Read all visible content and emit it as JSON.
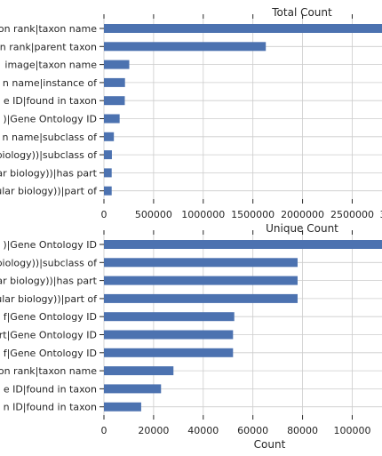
{
  "chart_data": [
    {
      "type": "bar",
      "orientation": "horizontal",
      "title": "Total Count",
      "xlabel": "",
      "categories": [
        "on rank|taxon name",
        "n rank|parent taxon",
        " image|taxon name",
        "n name|instance of",
        "e ID|found in taxon",
        ")|Gene Ontology ID",
        "n name|subclass of",
        "biology))|subclass of",
        "ar biology))|has part",
        "ular biology))|part of"
      ],
      "values": [
        2850000,
        1630000,
        255000,
        212000,
        210000,
        158000,
        100000,
        80000,
        78000,
        78000
      ],
      "xlim": [
        0,
        2800000
      ],
      "xticks": [
        0,
        500000,
        1000000,
        1500000,
        2000000,
        2500000
      ],
      "xtick_labels": [
        "0",
        "500000",
        "1000000",
        "1500000",
        "2000000",
        "2500000"
      ],
      "clipped_tick_label": "3",
      "bar_color": "#4c72b0",
      "grid": true
    },
    {
      "type": "bar",
      "orientation": "horizontal",
      "title": "Unique Count",
      "xlabel": "Count",
      "categories": [
        ")|Gene Ontology ID",
        "biology))|subclass of",
        "ar biology))|has part",
        "ular biology))|part of",
        "f|Gene Ontology ID",
        "rt|Gene Ontology ID",
        "f|Gene Ontology ID",
        "on rank|taxon name",
        "e ID|found in taxon",
        "n ID|found in taxon"
      ],
      "values": [
        115000,
        78000,
        78000,
        78000,
        52500,
        52000,
        52000,
        28000,
        23000,
        15000
      ],
      "xlim": [
        0,
        112000
      ],
      "xticks": [
        0,
        20000,
        40000,
        60000,
        80000,
        100000
      ],
      "xtick_labels": [
        "0",
        "20000",
        "40000",
        "60000",
        "80000",
        "100000"
      ],
      "bar_color": "#4c72b0",
      "grid": true
    }
  ]
}
